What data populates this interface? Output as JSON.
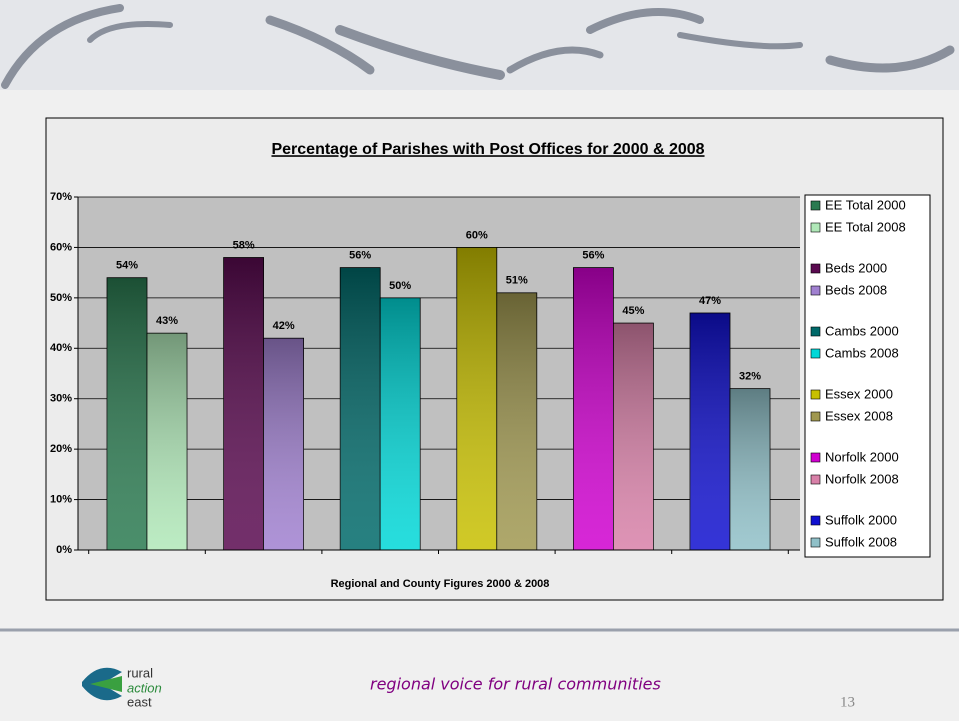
{
  "chart_data": {
    "type": "bar",
    "title": "Percentage of Parishes with Post Offices for 2000 & 2008",
    "xlabel": "Regional and County Figures 2000 & 2008",
    "categories": [
      null,
      null,
      null,
      null,
      null,
      null
    ],
    "ylim": [
      0,
      70
    ],
    "yticks": [
      {
        "value": 0,
        "label": "0%"
      },
      {
        "value": 10,
        "label": "10%"
      },
      {
        "value": 20,
        "label": "20%"
      },
      {
        "value": 30,
        "label": "30%"
      },
      {
        "value": 40,
        "label": "40%"
      },
      {
        "value": 50,
        "label": "50%"
      },
      {
        "value": 60,
        "label": "60%"
      },
      {
        "value": 70,
        "label": "70%"
      }
    ],
    "grid": true,
    "legend": "right",
    "series": [
      {
        "name": "EE Total 2000",
        "color": "#2a7a50",
        "values": [
          54,
          null,
          null,
          null,
          null,
          null
        ],
        "value_labels": [
          "54%",
          null,
          null,
          null,
          null,
          null
        ]
      },
      {
        "name": "EE Total 2008",
        "color": "#b0e8b8",
        "values": [
          43,
          null,
          null,
          null,
          null,
          null
        ],
        "value_labels": [
          "43%",
          null,
          null,
          null,
          null,
          null
        ]
      },
      {
        "name": "Beds 2000",
        "color": "#5a0a50",
        "values": [
          null,
          58,
          null,
          null,
          null,
          null
        ],
        "value_labels": [
          null,
          "58%",
          null,
          null,
          null,
          null
        ]
      },
      {
        "name": "Beds 2008",
        "color": "#a080d0",
        "values": [
          null,
          42,
          null,
          null,
          null,
          null
        ],
        "value_labels": [
          null,
          "42%",
          null,
          null,
          null,
          null
        ]
      },
      {
        "name": "Cambs 2000",
        "color": "#006a6a",
        "values": [
          null,
          null,
          56,
          null,
          null,
          null
        ],
        "value_labels": [
          null,
          null,
          "56%",
          null,
          null,
          null
        ]
      },
      {
        "name": "Cambs 2008",
        "color": "#00d8d8",
        "values": [
          null,
          null,
          50,
          null,
          null,
          null
        ],
        "value_labels": [
          null,
          null,
          "50%",
          null,
          null,
          null
        ]
      },
      {
        "name": "Essex 2000",
        "color": "#c8c000",
        "values": [
          null,
          null,
          null,
          60,
          null,
          null
        ],
        "value_labels": [
          null,
          null,
          null,
          "60%",
          null,
          null
        ]
      },
      {
        "name": "Essex 2008",
        "color": "#a09850",
        "values": [
          null,
          null,
          null,
          51,
          null,
          null
        ],
        "value_labels": [
          null,
          null,
          null,
          "51%",
          null,
          null
        ]
      },
      {
        "name": "Norfolk 2000",
        "color": "#d000d0",
        "values": [
          null,
          null,
          null,
          null,
          56,
          null
        ],
        "value_labels": [
          null,
          null,
          null,
          null,
          "56%",
          null
        ]
      },
      {
        "name": "Norfolk 2008",
        "color": "#d880a8",
        "values": [
          null,
          null,
          null,
          null,
          45,
          null
        ],
        "value_labels": [
          null,
          null,
          null,
          null,
          "45%",
          null
        ]
      },
      {
        "name": "Suffolk 2000",
        "color": "#1010d0",
        "values": [
          null,
          null,
          null,
          null,
          null,
          47
        ],
        "value_labels": [
          null,
          null,
          null,
          null,
          null,
          "47%"
        ]
      },
      {
        "name": "Suffolk 2008",
        "color": "#90c0c8",
        "values": [
          null,
          null,
          null,
          null,
          null,
          32
        ],
        "value_labels": [
          null,
          null,
          null,
          null,
          null,
          "32%"
        ]
      }
    ]
  },
  "footer": {
    "tagline": "regional voice for rural communities",
    "page_number": "13",
    "logo": [
      "rural",
      "action",
      "east"
    ]
  }
}
